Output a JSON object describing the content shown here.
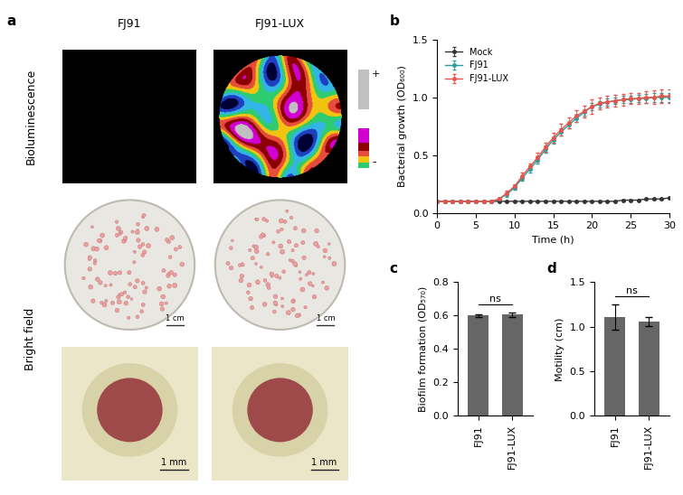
{
  "chart_data": [
    {
      "type": "line",
      "label": "b",
      "x_label": "Time (h)",
      "y_label": "Bacterial growth (OD₆₀₀)",
      "x": [
        0,
        1,
        2,
        3,
        4,
        5,
        6,
        7,
        8,
        9,
        10,
        11,
        12,
        13,
        14,
        15,
        16,
        17,
        18,
        19,
        20,
        21,
        22,
        23,
        24,
        25,
        26,
        27,
        28,
        29,
        30
      ],
      "series": [
        {
          "name": "Mock",
          "color": "#333333",
          "marker": "o",
          "values": [
            0.1,
            0.1,
            0.1,
            0.1,
            0.1,
            0.1,
            0.1,
            0.1,
            0.1,
            0.1,
            0.1,
            0.1,
            0.1,
            0.1,
            0.1,
            0.1,
            0.1,
            0.1,
            0.1,
            0.1,
            0.1,
            0.1,
            0.1,
            0.1,
            0.11,
            0.11,
            0.11,
            0.12,
            0.12,
            0.12,
            0.13
          ],
          "errors": [
            0.005,
            0.005,
            0.005,
            0.005,
            0.005,
            0.005,
            0.005,
            0.005,
            0.005,
            0.005,
            0.005,
            0.005,
            0.005,
            0.005,
            0.005,
            0.005,
            0.005,
            0.005,
            0.005,
            0.005,
            0.005,
            0.005,
            0.005,
            0.005,
            0.005,
            0.005,
            0.005,
            0.005,
            0.005,
            0.005,
            0.005
          ]
        },
        {
          "name": "FJ91",
          "color": "#2a9d9d",
          "marker": "o",
          "values": [
            0.1,
            0.1,
            0.1,
            0.1,
            0.1,
            0.1,
            0.1,
            0.1,
            0.12,
            0.16,
            0.22,
            0.3,
            0.38,
            0.46,
            0.55,
            0.63,
            0.7,
            0.76,
            0.82,
            0.87,
            0.92,
            0.94,
            0.96,
            0.97,
            0.98,
            0.98,
            0.99,
            0.99,
            1.0,
            1.0,
            1.0
          ],
          "errors": [
            0.01,
            0.01,
            0.01,
            0.01,
            0.01,
            0.01,
            0.01,
            0.01,
            0.01,
            0.02,
            0.02,
            0.02,
            0.03,
            0.03,
            0.03,
            0.03,
            0.03,
            0.03,
            0.03,
            0.03,
            0.03,
            0.03,
            0.03,
            0.03,
            0.03,
            0.03,
            0.03,
            0.04,
            0.04,
            0.04,
            0.04
          ]
        },
        {
          "name": "FJ91-LUX",
          "color": "#e8534a",
          "marker": "o",
          "values": [
            0.1,
            0.1,
            0.1,
            0.1,
            0.1,
            0.1,
            0.1,
            0.1,
            0.12,
            0.17,
            0.23,
            0.32,
            0.4,
            0.48,
            0.57,
            0.65,
            0.72,
            0.78,
            0.84,
            0.88,
            0.92,
            0.95,
            0.96,
            0.97,
            0.98,
            0.99,
            0.99,
            1.0,
            1.0,
            1.01,
            1.01
          ],
          "errors": [
            0.01,
            0.01,
            0.01,
            0.01,
            0.01,
            0.01,
            0.01,
            0.01,
            0.01,
            0.02,
            0.02,
            0.03,
            0.03,
            0.04,
            0.04,
            0.04,
            0.05,
            0.05,
            0.05,
            0.05,
            0.06,
            0.05,
            0.05,
            0.05,
            0.05,
            0.05,
            0.05,
            0.05,
            0.06,
            0.06,
            0.06
          ]
        }
      ],
      "xlim": [
        0,
        30
      ],
      "xticks": [
        0,
        5,
        10,
        15,
        20,
        25,
        30
      ],
      "ylim": [
        0,
        1.5
      ],
      "yticks": [
        {
          "value": 0,
          "label": "0.0"
        },
        {
          "value": 0.5,
          "label": "0.5"
        },
        {
          "value": 1.0,
          "label": "1.0"
        },
        {
          "value": 1.5,
          "label": "1.5"
        }
      ],
      "legend": "upper left"
    },
    {
      "type": "bar",
      "label": "c",
      "y_label": "Biofilm formation (OD₅₇₀)",
      "categories": [
        "FJ91",
        "FJ91-LUX"
      ],
      "values": [
        0.6,
        0.605
      ],
      "errors": [
        0.01,
        0.012
      ],
      "color": "#666666",
      "ylim": [
        0,
        0.8
      ],
      "yticks": [
        {
          "value": 0,
          "label": "0.0"
        },
        {
          "value": 0.2,
          "label": "0.2"
        },
        {
          "value": 0.4,
          "label": "0.4"
        },
        {
          "value": 0.6,
          "label": "0.6"
        },
        {
          "value": 0.8,
          "label": "0.8"
        }
      ],
      "annotation": "ns"
    },
    {
      "type": "bar",
      "label": "d",
      "y_label": "Motility (cm)",
      "categories": [
        "FJ91",
        "FJ91-LUX"
      ],
      "values": [
        1.11,
        1.06
      ],
      "errors": [
        0.14,
        0.05
      ],
      "color": "#666666",
      "ylim": [
        0,
        1.5
      ],
      "yticks": [
        {
          "value": 0,
          "label": "0.0"
        },
        {
          "value": 0.5,
          "label": "0.5"
        },
        {
          "value": 1.0,
          "label": "1.0"
        },
        {
          "value": 1.5,
          "label": "1.5"
        }
      ],
      "annotation": "ns"
    }
  ],
  "image_panel": {
    "label": "a",
    "columns": [
      "FJ91",
      "FJ91-LUX"
    ],
    "rows": [
      "Bioluminescence",
      "Bright field"
    ],
    "dish_scale": "1 cm",
    "colony_scale": "1 mm",
    "colorbar_labels": [
      "+",
      "-"
    ]
  }
}
